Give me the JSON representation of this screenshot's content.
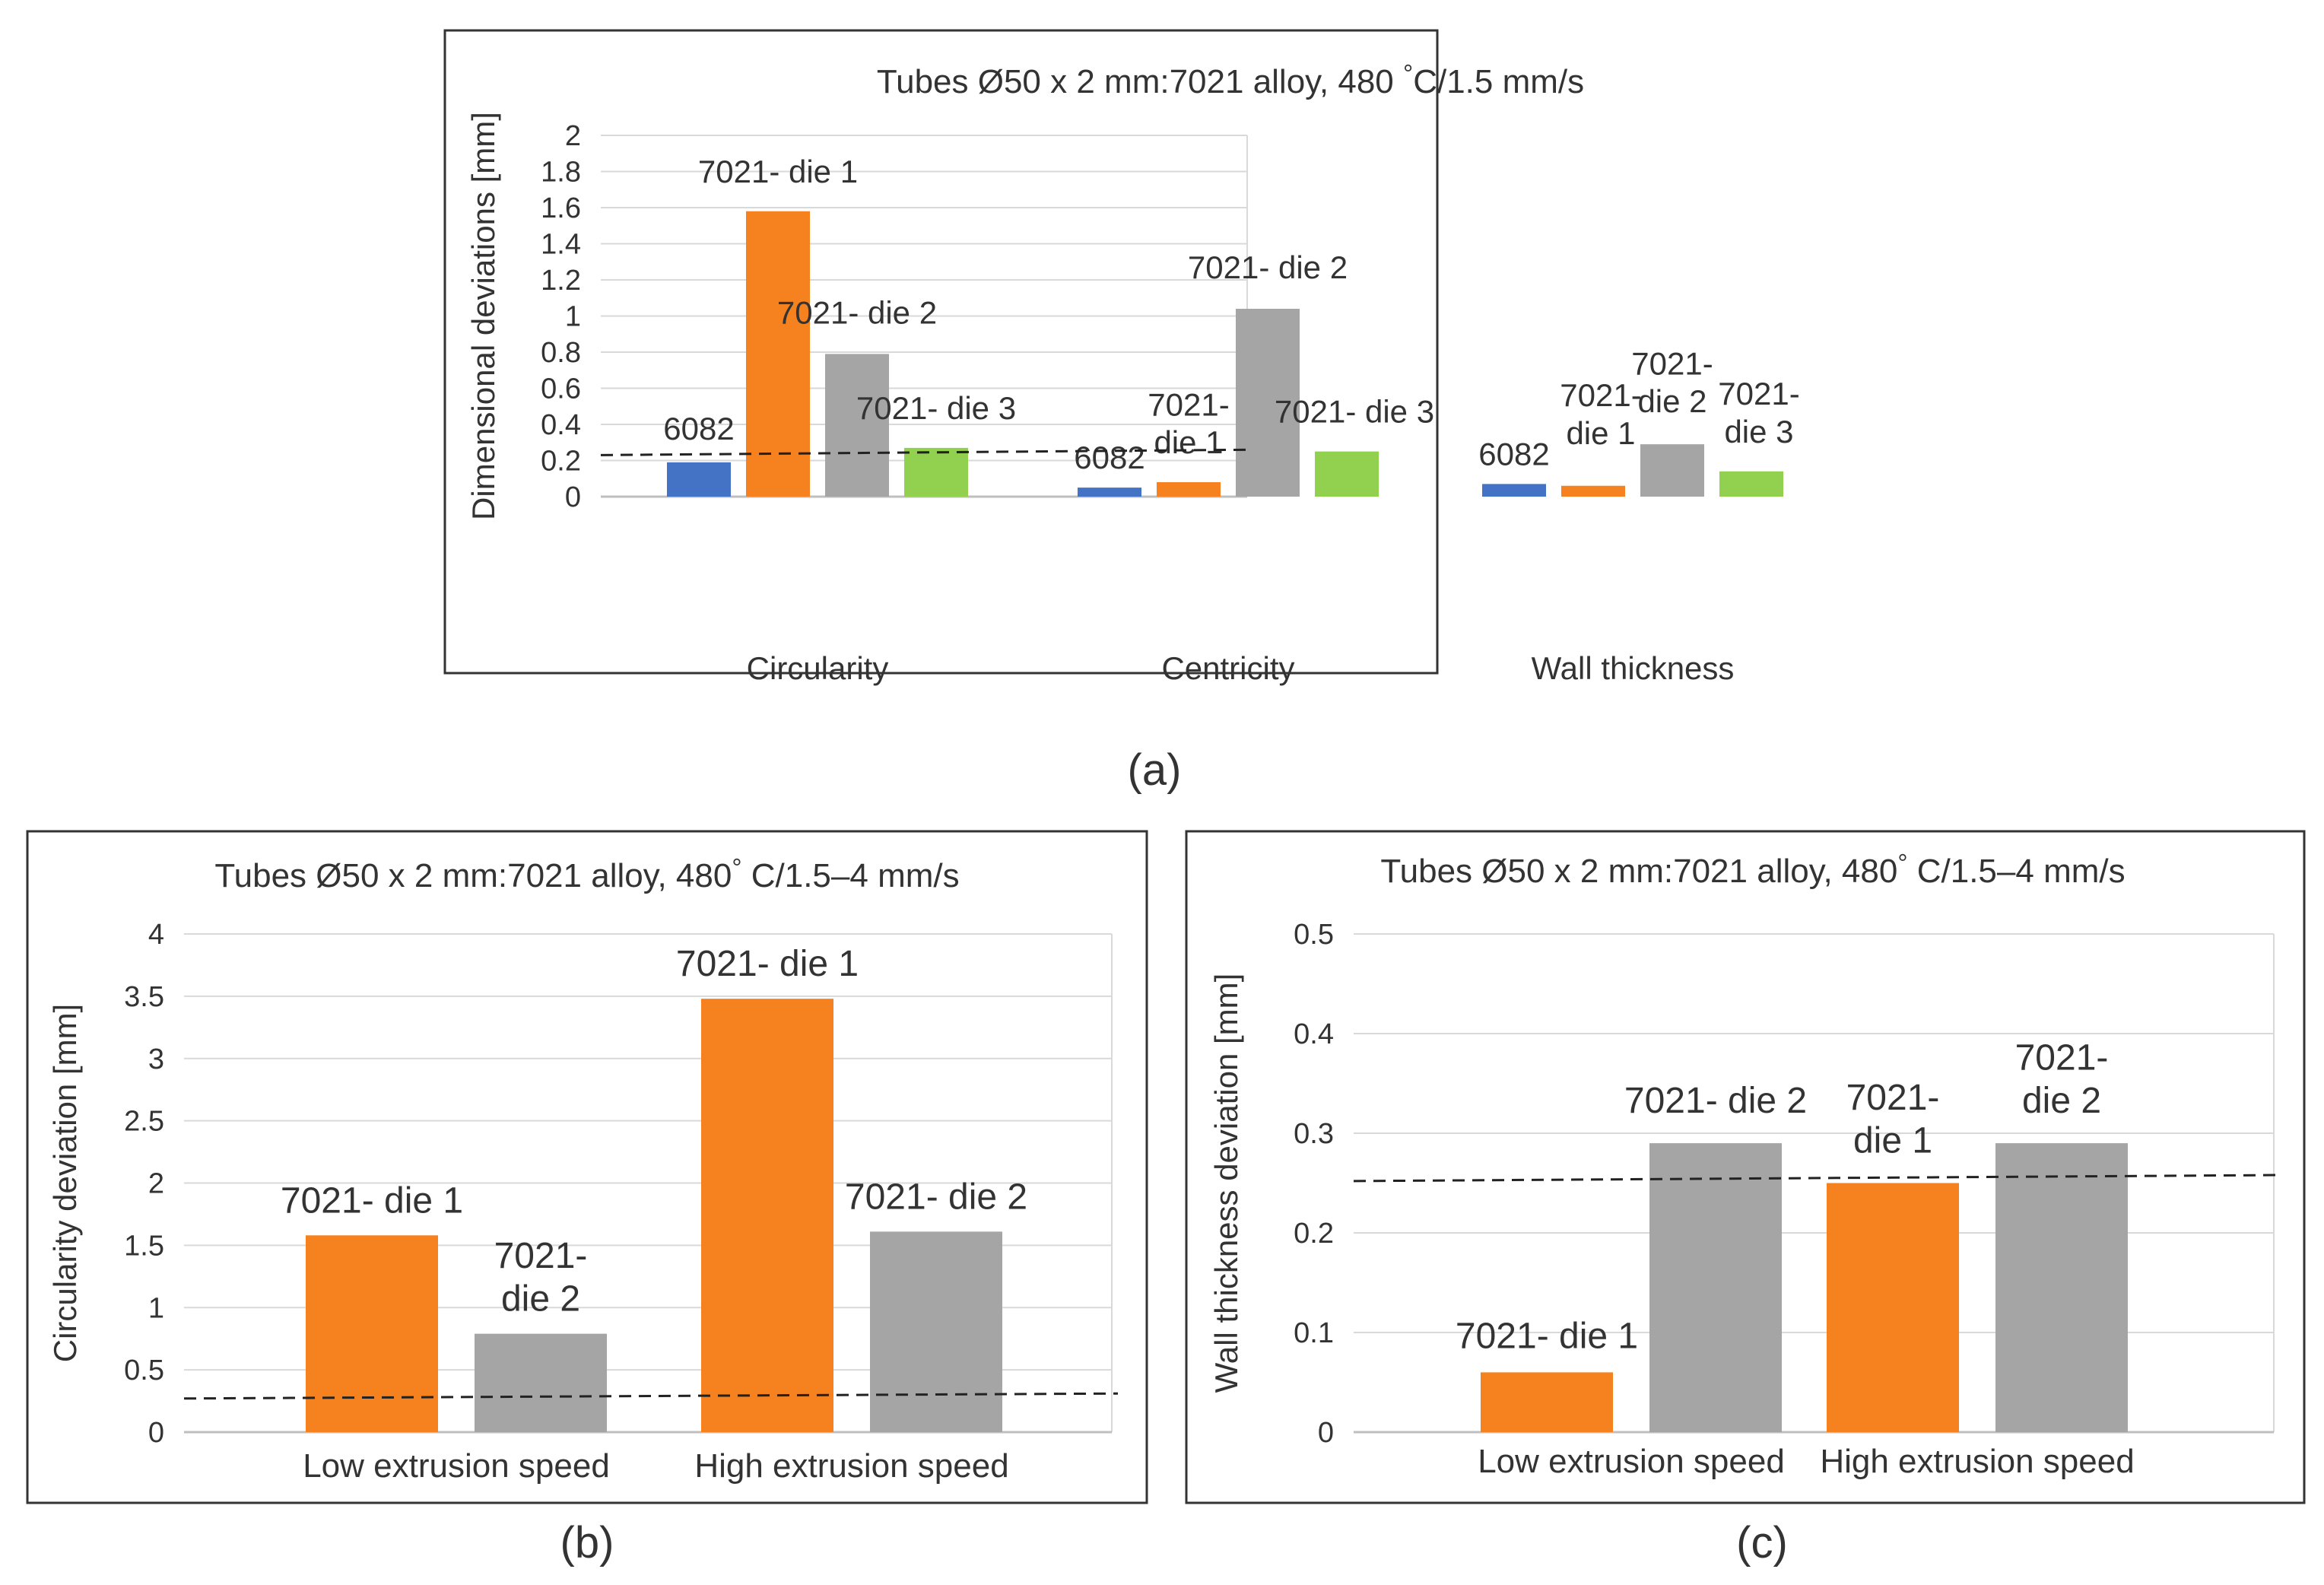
{
  "figure": {
    "captions": [
      "(a)",
      "(b)",
      "(c)"
    ]
  },
  "colors": {
    "6082": "#4472C4",
    "7021- die 1": "#F5821F",
    "7021- die 2": "#A5A5A5",
    "7021- die 3": "#92D050",
    "gridline": "#D9D9D9",
    "axis": "#BFBFBF",
    "text": "#333333",
    "frame": "#333333"
  },
  "chart_data": [
    {
      "id": "a",
      "type": "bar",
      "title_parts": [
        "Tubes Ø50 x 2 mm:7021 alloy, 480 ",
        "°",
        "C/1.5 mm/s"
      ],
      "xlabel": "",
      "ylabel": "Dimensional deviations [mm]",
      "ylim": [
        0,
        2
      ],
      "yticks": [
        "0",
        "0.2",
        "0.4",
        "0.6",
        "0.8",
        "1",
        "1.2",
        "1.4",
        "1.6",
        "1.8",
        "2"
      ],
      "categories": [
        "Circularity",
        "Centricity",
        "Wall thickness"
      ],
      "series": [
        {
          "name": "6082",
          "values": [
            0.19,
            0.05,
            0.07
          ]
        },
        {
          "name": "7021- die 1",
          "values": [
            1.58,
            0.08,
            0.06
          ]
        },
        {
          "name": "7021- die 2",
          "values": [
            0.79,
            1.04,
            0.29
          ]
        },
        {
          "name": "7021- die 3",
          "values": [
            0.27,
            0.25,
            0.14
          ]
        }
      ],
      "data_labels": [
        [
          "6082"
        ],
        [
          "7021- die 1"
        ],
        [
          "7021- die 2"
        ],
        [
          "7021- die 3"
        ],
        [
          "6082"
        ],
        [
          "7021-",
          "die 1"
        ],
        [
          "7021- die 2"
        ],
        [
          "7021- die 3"
        ],
        [
          "6082"
        ],
        [
          "7021-",
          "die 1"
        ],
        [
          "7021-",
          "die 2"
        ],
        [
          "7021-",
          "die 3"
        ]
      ],
      "reference_line": [
        0.23,
        0.26
      ],
      "gridlines": true
    },
    {
      "id": "b",
      "type": "bar",
      "title_parts": [
        "Tubes Ø50 x 2 mm:7021 alloy, 480",
        "°",
        " C/1.5–4 mm/s"
      ],
      "xlabel": "",
      "ylabel": "Circularity deviation [mm]",
      "ylim": [
        0,
        4
      ],
      "yticks": [
        "0",
        "0.5",
        "1",
        "1.5",
        "2",
        "2.5",
        "3",
        "3.5",
        "4"
      ],
      "categories": [
        "Low extrusion speed",
        "High extrusion speed"
      ],
      "series": [
        {
          "name": "7021- die 1",
          "values": [
            1.58,
            3.48
          ]
        },
        {
          "name": "7021- die 2",
          "values": [
            0.79,
            1.61
          ]
        }
      ],
      "data_labels": [
        [
          "7021- die 1"
        ],
        [
          "7021-",
          "die 2"
        ],
        [
          "7021- die 1"
        ],
        [
          "7021- die 2"
        ]
      ],
      "reference_line": [
        0.27,
        0.31
      ],
      "gridlines": true
    },
    {
      "id": "c",
      "type": "bar",
      "title_parts": [
        "Tubes Ø50 x 2 mm:7021 alloy, 480",
        "°",
        " C/1.5–4 mm/s"
      ],
      "xlabel": "",
      "ylabel": "Wall thickness deviation [mm]",
      "ylim": [
        0,
        0.5
      ],
      "yticks": [
        "0",
        "0.1",
        "0.2",
        "0.3",
        "0.4",
        "0.5"
      ],
      "categories": [
        "Low extrusion speed",
        "High extrusion speed"
      ],
      "series": [
        {
          "name": "7021- die 1",
          "values": [
            0.06,
            0.25
          ]
        },
        {
          "name": "7021- die 2",
          "values": [
            0.29,
            0.29
          ]
        }
      ],
      "data_labels": [
        [
          "7021- die 1"
        ],
        [
          "7021- die 2"
        ],
        [
          "7021-",
          "die 1"
        ],
        [
          "7021-",
          "die 2"
        ]
      ],
      "reference_line": [
        0.252,
        0.258
      ],
      "gridlines": true
    }
  ]
}
